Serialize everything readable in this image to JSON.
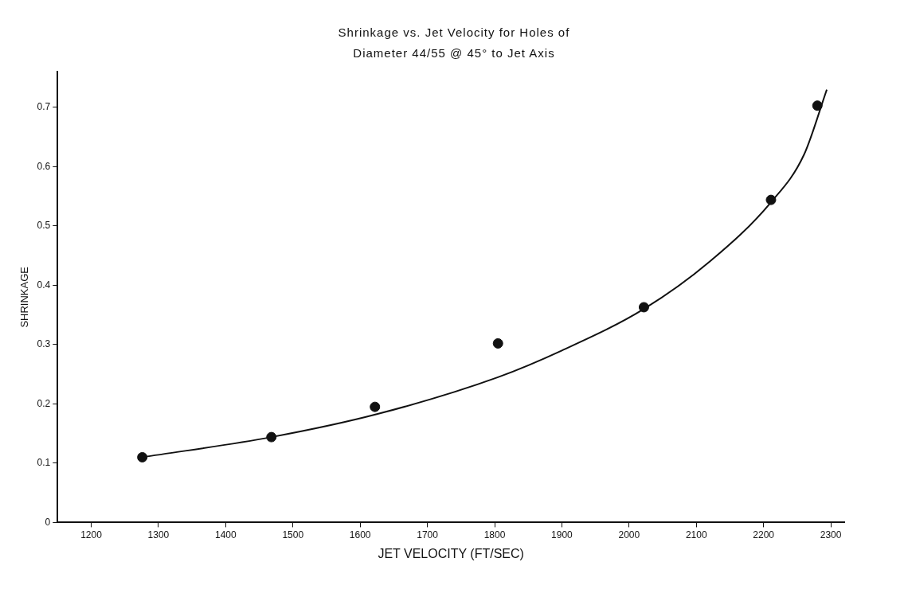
{
  "chart_data": {
    "type": "scatter",
    "title": "Shrinkage vs. Jet Velocity for Holes of",
    "subtitle": "Diameter 44/55 @ 45° to Jet Axis",
    "xlabel": "JET VELOCITY (FT/SEC)",
    "ylabel": "SHRINKAGE",
    "xlim": [
      1150,
      2320
    ],
    "xticks": [
      1200,
      1300,
      1400,
      1500,
      1600,
      1700,
      1800,
      1900,
      2000,
      2100,
      2200,
      2300
    ],
    "ylim": [
      0,
      0.76
    ],
    "yticks": [
      0,
      0.1,
      0.2,
      0.3,
      0.4,
      0.5,
      0.6,
      0.7
    ],
    "grid": false,
    "legend": false,
    "series": [
      {
        "color": "#111111",
        "marker": "circle",
        "x": [
          1276,
          1468,
          1622,
          1805,
          2022,
          2211,
          2280
        ],
        "values": [
          0.11,
          0.144,
          0.195,
          0.302,
          0.363,
          0.544,
          0.703
        ]
      },
      {
        "type": "line",
        "color": "#111111",
        "marker": "none",
        "line_style": "solid",
        "x": [
          1276,
          1468,
          1626,
          1805,
          1900,
          2022,
          2120,
          2211,
          2260,
          2294
        ],
        "values": [
          0.11,
          0.144,
          0.183,
          0.245,
          0.29,
          0.36,
          0.44,
          0.54,
          0.62,
          0.73
        ]
      }
    ]
  }
}
